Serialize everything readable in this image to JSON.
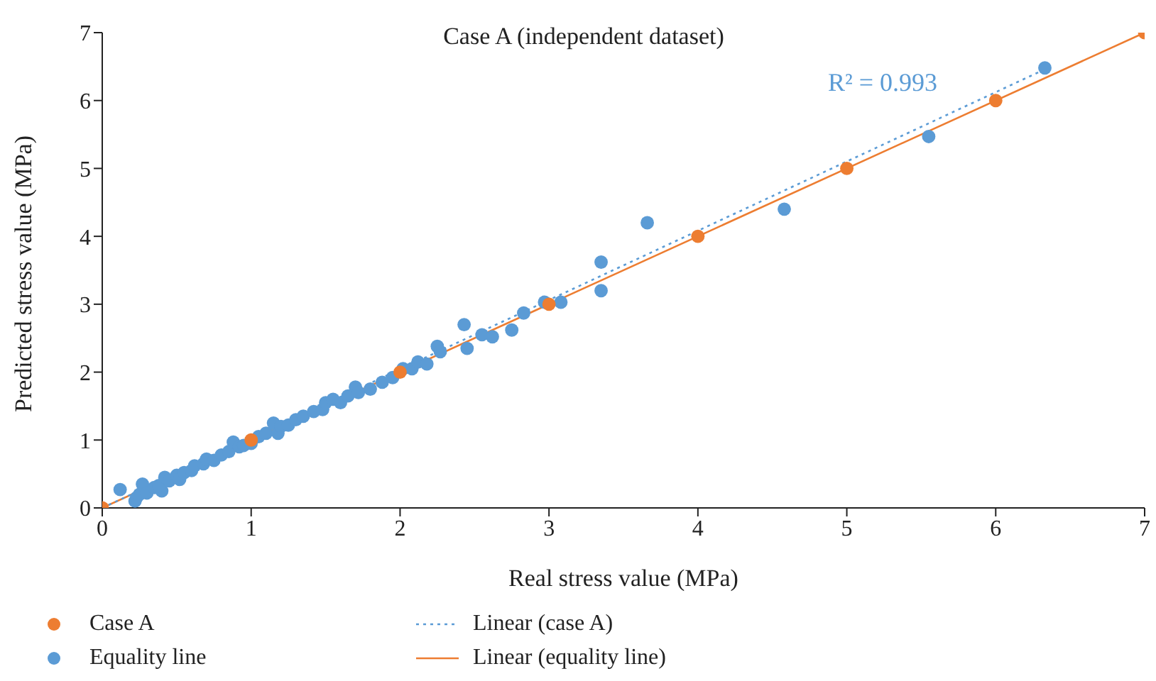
{
  "chart_data": {
    "type": "scatter",
    "title": "Case A (independent dataset)",
    "xlabel": "Real stress value (MPa)",
    "ylabel": "Predicted stress value (MPa)",
    "annotations": [
      "R² = 0.993"
    ],
    "xlim": [
      0,
      7
    ],
    "xticks": [
      0,
      1,
      2,
      3,
      4,
      5,
      6,
      7
    ],
    "ylim": [
      0,
      7
    ],
    "yticks": [
      0,
      1,
      2,
      3,
      4,
      5,
      6,
      7
    ],
    "grid": false,
    "legend": "bottom",
    "marker": "circle",
    "series": [
      {
        "name": "Case A",
        "color": "#ed7d31",
        "x": [
          0,
          1,
          2,
          3,
          4,
          5,
          6,
          7
        ],
        "values": [
          0,
          1,
          2,
          3,
          4,
          5,
          6,
          7
        ]
      },
      {
        "name": "Equality line",
        "color": "#5b9bd5",
        "x": [
          0.12,
          0.22,
          0.27,
          0.4,
          0.23,
          0.25,
          0.3,
          0.35,
          0.38,
          0.42,
          0.45,
          0.5,
          0.52,
          0.55,
          0.6,
          0.62,
          0.68,
          0.7,
          0.75,
          0.8,
          0.85,
          0.88,
          0.92,
          0.95,
          1.0,
          1.05,
          1.1,
          1.15,
          1.18,
          1.2,
          1.25,
          1.3,
          1.35,
          1.42,
          1.48,
          1.5,
          1.55,
          1.6,
          1.65,
          1.7,
          1.72,
          1.8,
          1.88,
          1.95,
          2.02,
          2.08,
          2.12,
          2.18,
          2.25,
          2.27,
          2.43,
          2.45,
          2.55,
          2.62,
          2.75,
          2.83,
          2.97,
          3.08,
          3.35,
          3.35,
          3.66,
          4.58,
          5.55,
          6.33
        ],
        "values": [
          0.27,
          0.1,
          0.35,
          0.25,
          0.15,
          0.2,
          0.22,
          0.3,
          0.33,
          0.45,
          0.4,
          0.48,
          0.42,
          0.52,
          0.55,
          0.62,
          0.65,
          0.72,
          0.7,
          0.78,
          0.83,
          0.97,
          0.9,
          0.92,
          0.95,
          1.05,
          1.1,
          1.25,
          1.1,
          1.2,
          1.22,
          1.3,
          1.35,
          1.42,
          1.45,
          1.55,
          1.6,
          1.55,
          1.65,
          1.78,
          1.7,
          1.75,
          1.85,
          1.92,
          2.05,
          2.05,
          2.15,
          2.12,
          2.38,
          2.3,
          2.7,
          2.35,
          2.55,
          2.52,
          2.62,
          2.87,
          3.03,
          3.03,
          3.62,
          3.2,
          4.2,
          4.4,
          5.47,
          6.48
        ]
      },
      {
        "name": "Linear (case A)",
        "type": "line",
        "color": "#5b9bd5",
        "line_style": "dotted",
        "marker": "none",
        "x": [
          0,
          6.33
        ],
        "values": [
          0,
          6.46
        ]
      },
      {
        "name": "Linear (equality line)",
        "type": "line",
        "color": "#ed7d31",
        "line_style": "solid",
        "marker": "none",
        "x": [
          0,
          7
        ],
        "values": [
          0,
          7
        ]
      }
    ]
  }
}
